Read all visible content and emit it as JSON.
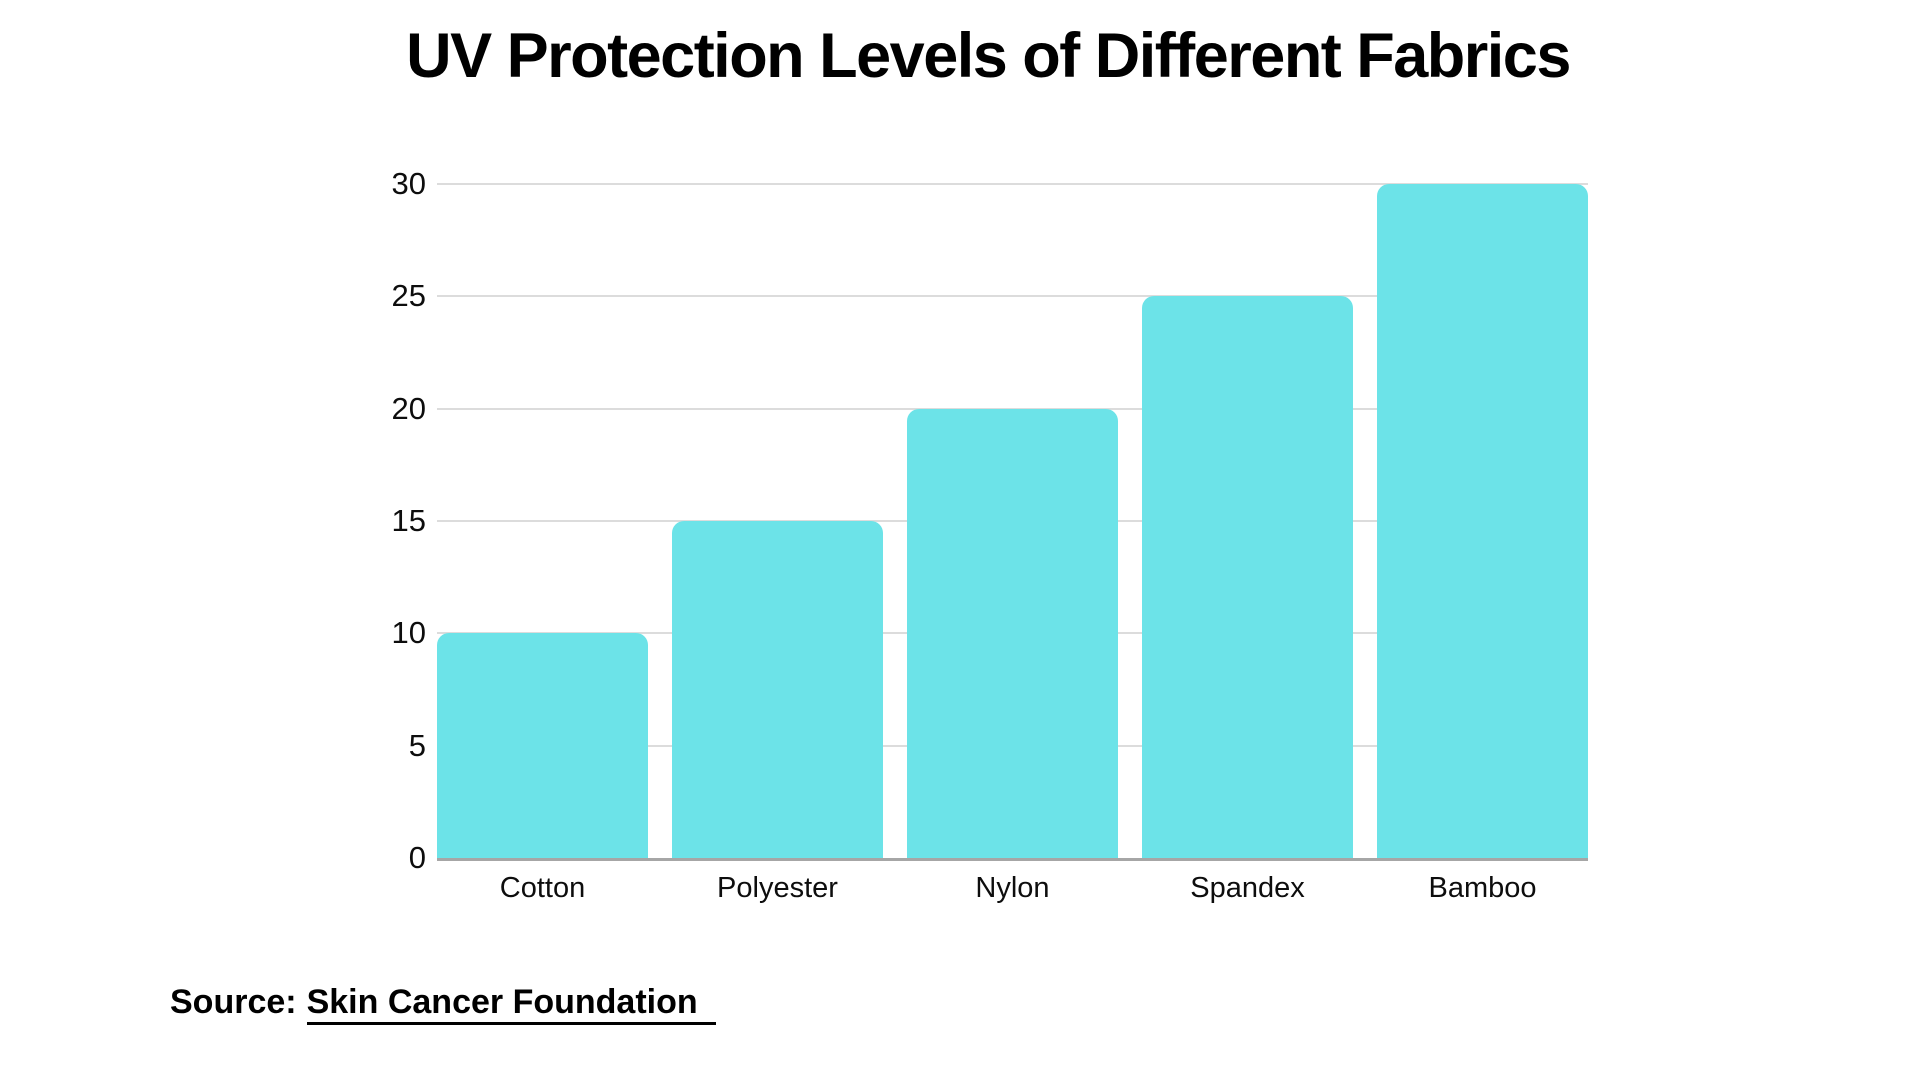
{
  "page": {
    "background": "#FFFFFF"
  },
  "header": {
    "title": "UV Protection Levels of Different Fabrics"
  },
  "chart_data": {
    "type": "bar",
    "title": "UV Protection Levels of Different Fabrics",
    "categories": [
      "Cotton",
      "Polyester",
      "Nylon",
      "Spandex",
      "Bamboo"
    ],
    "values": [
      10,
      15,
      20,
      25,
      30
    ],
    "xlabel": "",
    "ylabel": "",
    "ylim": [
      0,
      30
    ],
    "yticks": [
      0,
      5,
      10,
      15,
      20,
      25,
      30
    ],
    "grid": true,
    "legend_position": "none",
    "bar_color": "#6CE3E8",
    "gridline_color": "#DCDCDC",
    "axis_line_color": "#A6A6A6",
    "tick_label_color": "#0D0D0D"
  },
  "footer": {
    "source_prefix": "Source:",
    "source_link": "Skin Cancer Foundation"
  }
}
